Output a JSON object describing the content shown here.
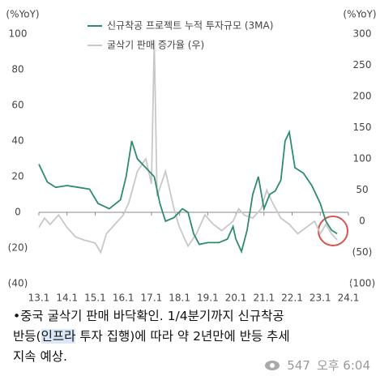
{
  "chart_data": {
    "type": "line",
    "y_axis_label": "(%YoY)",
    "y2_axis_label": "(%YoY)",
    "xlim": [
      0,
      11
    ],
    "xticks": [
      {
        "value": 0,
        "label": "13.1"
      },
      {
        "value": 1,
        "label": "14.1"
      },
      {
        "value": 2,
        "label": "15.1"
      },
      {
        "value": 3,
        "label": "16.1"
      },
      {
        "value": 4,
        "label": "17.1"
      },
      {
        "value": 5,
        "label": "18.1"
      },
      {
        "value": 6,
        "label": "19.1"
      },
      {
        "value": 7,
        "label": "20.1"
      },
      {
        "value": 8,
        "label": "21.1"
      },
      {
        "value": 9,
        "label": "22.1"
      },
      {
        "value": 10,
        "label": "23.1"
      },
      {
        "value": 11,
        "label": "24.1"
      }
    ],
    "ylim": [
      -40,
      100
    ],
    "yticks": [
      100,
      80,
      60,
      40,
      20,
      0,
      {
        "value": -20,
        "label": "(20)"
      },
      {
        "value": -40,
        "label": "(40)"
      }
    ],
    "y2lim": [
      -100,
      300
    ],
    "y2ticks": [
      300,
      250,
      200,
      150,
      100,
      50,
      0,
      {
        "value": -50,
        "label": "(50)"
      },
      {
        "value": -100,
        "label": "(100)"
      }
    ],
    "series": [
      {
        "name": "신규착공 프로젝트 누적 투자규모 (3MA)",
        "color": "#2e8b6e",
        "axis": "y",
        "x": [
          0,
          0.3,
          0.6,
          1,
          1.4,
          1.8,
          2.1,
          2.5,
          2.9,
          3.1,
          3.3,
          3.5,
          3.8,
          4.1,
          4.3,
          4.5,
          4.8,
          5.1,
          5.3,
          5.5,
          5.7,
          6,
          6.4,
          6.7,
          6.9,
          7.0,
          7.2,
          7.4,
          7.6,
          7.8,
          8,
          8.2,
          8.4,
          8.6,
          8.75,
          8.9,
          9.1,
          9.4,
          9.7,
          10,
          10.2,
          10.4,
          10.6
        ],
        "values": [
          27,
          17,
          14,
          15,
          14,
          13,
          5,
          2,
          7,
          20,
          40,
          30,
          25,
          20,
          5,
          -5,
          -3,
          2,
          0,
          -12,
          -18,
          -17,
          -17,
          -15,
          -8,
          -15,
          -22,
          -10,
          10,
          20,
          2,
          10,
          12,
          18,
          40,
          45,
          25,
          22,
          15,
          5,
          -5,
          -10,
          -12
        ]
      },
      {
        "name": "굴삭기 판매 증가율 (우)",
        "color": "#c8c8c8",
        "axis": "y2",
        "x": [
          0,
          0.2,
          0.4,
          0.7,
          1,
          1.3,
          1.6,
          2,
          2.2,
          2.4,
          2.7,
          3,
          3.2,
          3.5,
          3.8,
          4,
          4.1,
          4.2,
          4.5,
          4.8,
          5,
          5.3,
          5.6,
          5.9,
          6.2,
          6.5,
          6.9,
          7.1,
          7.3,
          7.6,
          7.9,
          8.1,
          8.3,
          8.6,
          8.9,
          9.2,
          9.5,
          9.8,
          10,
          10.2,
          10.4,
          10.6
        ],
        "values": [
          -10,
          5,
          -5,
          10,
          -10,
          -25,
          -30,
          -35,
          -50,
          -20,
          -5,
          10,
          30,
          80,
          100,
          60,
          290,
          40,
          80,
          20,
          -10,
          -40,
          -20,
          10,
          -5,
          -15,
          0,
          20,
          10,
          5,
          20,
          50,
          30,
          5,
          -5,
          -20,
          -10,
          0,
          -20,
          -5,
          -20,
          -30
        ]
      }
    ]
  },
  "caption": {
    "line1": "•중국 굴삭기 판매 바닥확인. 1/4분기까지 신규착공",
    "line2_pre": "반등(",
    "line2_highlight": "인프라",
    "line2_post": " 투자 집행)에 따라 약 2년만에 반등 추세",
    "line3": "지속 예상."
  },
  "footer": {
    "views": "547",
    "time": "오후 6:04"
  }
}
